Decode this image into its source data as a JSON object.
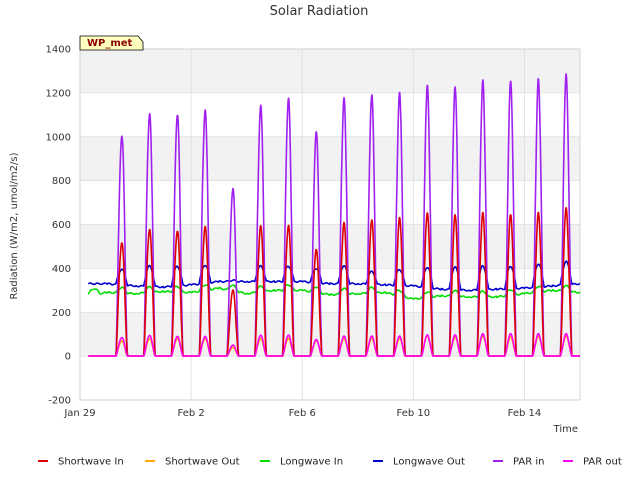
{
  "chart_data": {
    "type": "line",
    "title": "Solar Radiation",
    "site_label": "WP_met",
    "xlabel": "Time",
    "ylabel": "Radiation (W/m2, umol/m2/s)",
    "ylim": [
      -200,
      1400
    ],
    "yticks": [
      -200,
      0,
      200,
      400,
      600,
      800,
      1000,
      1200,
      1400
    ],
    "xlim": [
      "2025-01-29",
      "2025-02-16"
    ],
    "xticks": [
      {
        "date": "2025-01-29",
        "label": "Jan 29"
      },
      {
        "date": "2025-02-02",
        "label": "Feb 2"
      },
      {
        "date": "2025-02-06",
        "label": "Feb 6"
      },
      {
        "date": "2025-02-10",
        "label": "Feb 10"
      },
      {
        "date": "2025-02-14",
        "label": "Feb 14"
      }
    ],
    "grid": true,
    "legend_position": "bottom",
    "days": [
      "2025-01-29",
      "2025-01-30",
      "2025-01-31",
      "2025-02-01",
      "2025-02-02",
      "2025-02-03",
      "2025-02-04",
      "2025-02-05",
      "2025-02-06",
      "2025-02-07",
      "2025-02-08",
      "2025-02-09",
      "2025-02-10",
      "2025-02-11",
      "2025-02-12",
      "2025-02-13",
      "2025-02-14",
      "2025-02-15"
    ],
    "series": [
      {
        "name": "Shortwave In",
        "color": "#dd0000",
        "kind": "diurnal",
        "night": 0,
        "peaks": [
          null,
          520,
          580,
          570,
          590,
          300,
          590,
          590,
          480,
          600,
          610,
          620,
          640,
          630,
          640,
          630,
          640,
          660
        ]
      },
      {
        "name": "Shortwave Out",
        "color": "#ffa500",
        "kind": "diurnal",
        "night": 0,
        "peaks": [
          null,
          70,
          80,
          80,
          80,
          40,
          80,
          80,
          70,
          80,
          80,
          80,
          90,
          85,
          90,
          85,
          90,
          90
        ]
      },
      {
        "name": "Longwave In",
        "color": "#00dd00",
        "kind": "continuous",
        "daily": [
          275,
          290,
          285,
          295,
          290,
          310,
          285,
          300,
          300,
          280,
          285,
          290,
          260,
          275,
          270,
          270,
          285,
          300
        ],
        "last_value": 290
      },
      {
        "name": "Longwave Out",
        "color": "#0000cc",
        "kind": "continuous",
        "daily": [
          330,
          330,
          320,
          315,
          325,
          340,
          340,
          340,
          340,
          330,
          330,
          325,
          320,
          305,
          300,
          305,
          310,
          320
        ],
        "peaks": [
          null,
          395,
          410,
          410,
          415,
          345,
          410,
          410,
          400,
          410,
          385,
          395,
          405,
          405,
          410,
          410,
          420,
          430
        ],
        "last_value": 330
      },
      {
        "name": "PAR in",
        "color": "#a020f0",
        "kind": "diurnal",
        "night": 0,
        "peaks": [
          null,
          1010,
          1110,
          1100,
          1120,
          760,
          1135,
          1165,
          1010,
          1160,
          1170,
          1180,
          1210,
          1200,
          1230,
          1225,
          1235,
          1255
        ]
      },
      {
        "name": "PAR out",
        "color": "#ff00ff",
        "kind": "diurnal",
        "night": 0,
        "peaks": [
          null,
          85,
          95,
          90,
          90,
          50,
          95,
          95,
          75,
          90,
          90,
          90,
          95,
          95,
          100,
          100,
          100,
          100
        ]
      }
    ]
  }
}
